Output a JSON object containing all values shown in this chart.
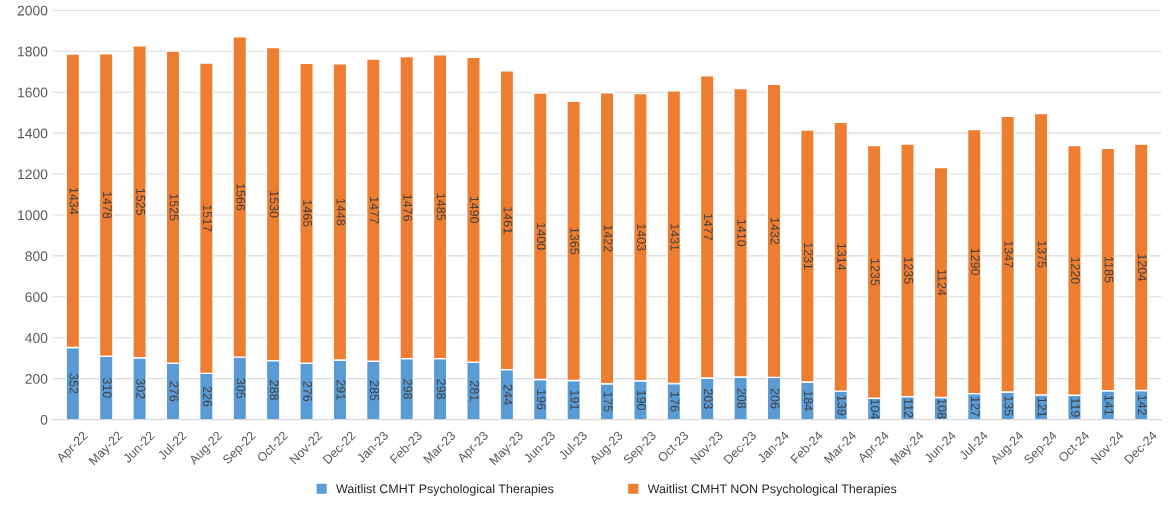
{
  "chart_data": {
    "type": "bar",
    "stacked": true,
    "categories": [
      "Apr-22",
      "May-22",
      "Jun-22",
      "Jul-22",
      "Aug-22",
      "Sep-22",
      "Oct-22",
      "Nov-22",
      "Dec-22",
      "Jan-23",
      "Feb-23",
      "Mar-23",
      "Apr-23",
      "May-23",
      "Jun-23",
      "Jul-23",
      "Aug-23",
      "Sep-23",
      "Oct-23",
      "Nov-23",
      "Dec-23",
      "Jan-24",
      "Feb-24",
      "Mar-24",
      "Apr-24",
      "May-24",
      "Jun-24",
      "Jul-24",
      "Aug-24",
      "Sep-24",
      "Oct-24",
      "Nov-24",
      "Dec-24"
    ],
    "series": [
      {
        "name": "Waitlist CMHT Psychological Therapies",
        "color": "#5b9bd5",
        "values": [
          352,
          310,
          302,
          276,
          226,
          305,
          288,
          276,
          291,
          285,
          298,
          298,
          281,
          244,
          196,
          191,
          175,
          190,
          176,
          203,
          208,
          206,
          184,
          139,
          104,
          112,
          108,
          127,
          135,
          121,
          119,
          141,
          142
        ]
      },
      {
        "name": "Waitlist CMHT NON Psychological Therapies",
        "color": "#ed7d31",
        "values": [
          1434,
          1478,
          1525,
          1525,
          1517,
          1566,
          1530,
          1465,
          1448,
          1477,
          1476,
          1485,
          1490,
          1461,
          1400,
          1365,
          1422,
          1403,
          1431,
          1477,
          1410,
          1432,
          1231,
          1314,
          1235,
          1235,
          1124,
          1290,
          1347,
          1375,
          1220,
          1185,
          1204
        ]
      }
    ],
    "ylim": [
      0,
      2000
    ],
    "yticks": [
      0,
      200,
      400,
      600,
      800,
      1000,
      1200,
      1400,
      1600,
      1800,
      2000
    ],
    "grid": "y",
    "legend": "bottom",
    "data_labels": true
  }
}
